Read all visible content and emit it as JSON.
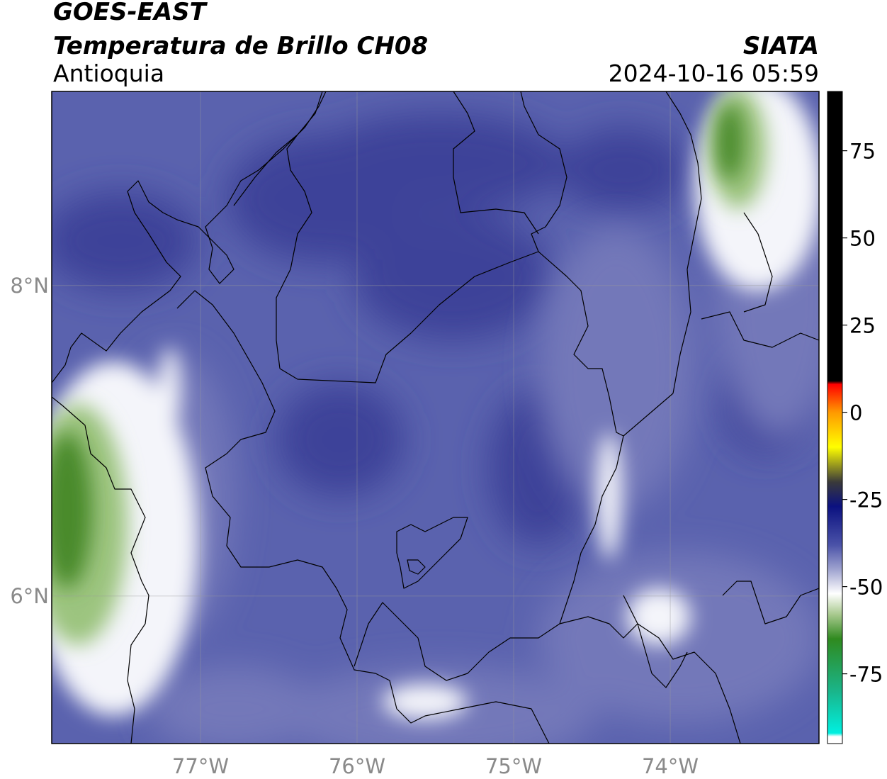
{
  "header": {
    "satellite": "GOES-EAST",
    "product": "Temperatura de Brillo CH08",
    "region": "Antioquia",
    "organization": "SIATA",
    "timestamp": "2024-10-16 05:59"
  },
  "map": {
    "lon_range": [
      -77.95,
      -73.05
    ],
    "lat_range": [
      5.05,
      9.25
    ],
    "lon_ticks": [
      {
        "value": -77,
        "label": "77°W"
      },
      {
        "value": -76,
        "label": "76°W"
      },
      {
        "value": -75,
        "label": "75°W"
      },
      {
        "value": -74,
        "label": "74°W"
      }
    ],
    "lat_ticks": [
      {
        "value": 8,
        "label": "8°N"
      },
      {
        "value": 6,
        "label": "6°N"
      }
    ],
    "colors": {
      "background": "#5a62ae",
      "dark_blue": "#3d4399",
      "light_blue": "#7378b9",
      "white": "#f4f5fa",
      "green": "#4a8a2c",
      "light_green": "#9cc47f"
    }
  },
  "colorbar": {
    "range": [
      -95,
      92
    ],
    "ticks": [
      {
        "value": 75,
        "label": "75"
      },
      {
        "value": 50,
        "label": "50"
      },
      {
        "value": 25,
        "label": "25"
      },
      {
        "value": 0,
        "label": "0"
      },
      {
        "value": -25,
        "label": "-25"
      },
      {
        "value": -50,
        "label": "-50"
      },
      {
        "value": -75,
        "label": "-75"
      }
    ],
    "stops": [
      {
        "value": 92,
        "color": "#000000"
      },
      {
        "value": 9,
        "color": "#000000"
      },
      {
        "value": 8,
        "color": "#ff0000"
      },
      {
        "value": 0,
        "color": "#ff9900"
      },
      {
        "value": -10,
        "color": "#ffff00"
      },
      {
        "value": -20,
        "color": "#3a3a3a"
      },
      {
        "value": -27,
        "color": "#0b1180"
      },
      {
        "value": -38,
        "color": "#4a52a8"
      },
      {
        "value": -45,
        "color": "#9ea2cf"
      },
      {
        "value": -52,
        "color": "#ffffff"
      },
      {
        "value": -58,
        "color": "#a8c98e"
      },
      {
        "value": -65,
        "color": "#2f8a1f"
      },
      {
        "value": -80,
        "color": "#1ab58a"
      },
      {
        "value": -92,
        "color": "#00f0e0"
      },
      {
        "value": -93,
        "color": "#ffffff"
      },
      {
        "value": -95,
        "color": "#ffffff"
      }
    ]
  }
}
